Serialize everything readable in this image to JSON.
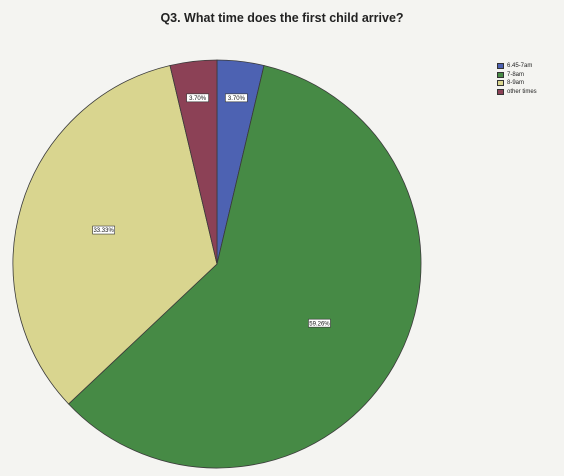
{
  "chart_data": {
    "type": "pie",
    "title": "Q3. What time does the first child arrive?",
    "categories": [
      "6.45-7am",
      "7-8am",
      "8-9am",
      "other times"
    ],
    "values": [
      3.7,
      59.26,
      33.33,
      3.7
    ],
    "data_labels": [
      "3.70%",
      "59.26%",
      "33.33%",
      "3.70%"
    ],
    "colors": [
      "#4d62b2",
      "#468a45",
      "#d9d58f",
      "#8c4156"
    ],
    "legend": {
      "position": "top-right",
      "entries": [
        "6.45-7am",
        "7-8am",
        "8-9am",
        "other times"
      ]
    }
  }
}
